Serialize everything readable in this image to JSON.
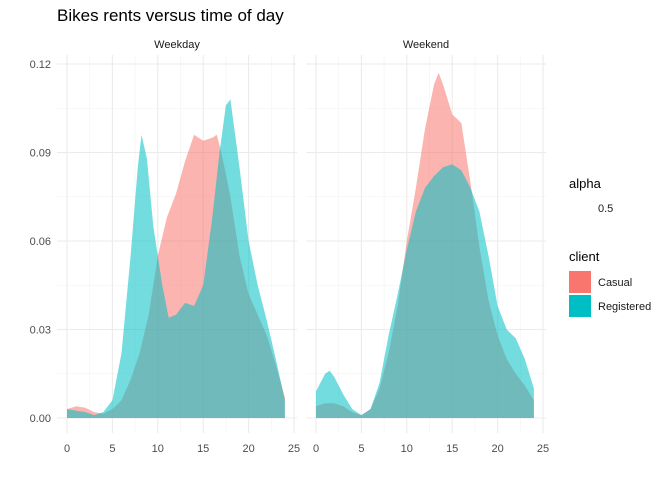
{
  "chart_data": {
    "type": "area",
    "title": "Bikes rents versus time of day",
    "xlabel": "",
    "ylabel": "",
    "xlim": [
      0,
      25
    ],
    "ylim": [
      0,
      0.12
    ],
    "x_ticks": [
      "0",
      "5",
      "10",
      "15",
      "20",
      "25"
    ],
    "y_ticks": [
      "0.00",
      "0.03",
      "0.06",
      "0.09",
      "0.12"
    ],
    "grid": true,
    "legend_position": "right",
    "facets": [
      {
        "label": "Weekday",
        "series": [
          {
            "name": "Casual",
            "color": "#F8766D",
            "points": [
              [
                0,
                0.003
              ],
              [
                1,
                0.004
              ],
              [
                2,
                0.0035
              ],
              [
                3,
                0.002
              ],
              [
                4,
                0.0015
              ],
              [
                5,
                0.003
              ],
              [
                6,
                0.006
              ],
              [
                7,
                0.013
              ],
              [
                8,
                0.022
              ],
              [
                9,
                0.035
              ],
              [
                10,
                0.055
              ],
              [
                11,
                0.068
              ],
              [
                12,
                0.076
              ],
              [
                13,
                0.087
              ],
              [
                14,
                0.096
              ],
              [
                15,
                0.094
              ],
              [
                16,
                0.095
              ],
              [
                16.5,
                0.096
              ],
              [
                17,
                0.09
              ],
              [
                18,
                0.075
              ],
              [
                19,
                0.055
              ],
              [
                20,
                0.042
              ],
              [
                21,
                0.035
              ],
              [
                22,
                0.028
              ],
              [
                23,
                0.018
              ],
              [
                24,
                0.007
              ]
            ]
          },
          {
            "name": "Registered",
            "color": "#00BFC4",
            "points": [
              [
                0,
                0.003
              ],
              [
                1,
                0.0025
              ],
              [
                2,
                0.002
              ],
              [
                3,
                0.001
              ],
              [
                4,
                0.002
              ],
              [
                5,
                0.006
              ],
              [
                6,
                0.022
              ],
              [
                7,
                0.055
              ],
              [
                7.8,
                0.085
              ],
              [
                8.2,
                0.096
              ],
              [
                8.8,
                0.088
              ],
              [
                9.5,
                0.065
              ],
              [
                10.5,
                0.045
              ],
              [
                11.2,
                0.034
              ],
              [
                12,
                0.035
              ],
              [
                13,
                0.039
              ],
              [
                14,
                0.038
              ],
              [
                15,
                0.045
              ],
              [
                16,
                0.068
              ],
              [
                16.8,
                0.09
              ],
              [
                17.5,
                0.106
              ],
              [
                18,
                0.108
              ],
              [
                19,
                0.085
              ],
              [
                20,
                0.06
              ],
              [
                21,
                0.045
              ],
              [
                22,
                0.033
              ],
              [
                23,
                0.02
              ],
              [
                24,
                0.006
              ]
            ]
          }
        ]
      },
      {
        "label": "Weekend",
        "series": [
          {
            "name": "Casual",
            "color": "#F8766D",
            "points": [
              [
                0,
                0.004
              ],
              [
                1,
                0.005
              ],
              [
                2,
                0.005
              ],
              [
                3,
                0.004
              ],
              [
                4,
                0.002
              ],
              [
                5,
                0.001
              ],
              [
                6,
                0.003
              ],
              [
                7,
                0.01
              ],
              [
                8,
                0.022
              ],
              [
                9,
                0.038
              ],
              [
                10,
                0.06
              ],
              [
                11,
                0.078
              ],
              [
                12,
                0.098
              ],
              [
                13,
                0.113
              ],
              [
                13.5,
                0.117
              ],
              [
                14,
                0.113
              ],
              [
                15,
                0.103
              ],
              [
                16,
                0.1
              ],
              [
                17,
                0.08
              ],
              [
                18,
                0.058
              ],
              [
                19,
                0.04
              ],
              [
                20,
                0.028
              ],
              [
                21,
                0.02
              ],
              [
                22,
                0.015
              ],
              [
                23,
                0.011
              ],
              [
                24,
                0.006
              ]
            ]
          },
          {
            "name": "Registered",
            "color": "#00BFC4",
            "points": [
              [
                0,
                0.009
              ],
              [
                0.5,
                0.012
              ],
              [
                1,
                0.015
              ],
              [
                1.5,
                0.016
              ],
              [
                2,
                0.014
              ],
              [
                3,
                0.008
              ],
              [
                4,
                0.003
              ],
              [
                5,
                0.001
              ],
              [
                6,
                0.003
              ],
              [
                7,
                0.012
              ],
              [
                8,
                0.028
              ],
              [
                9,
                0.042
              ],
              [
                10,
                0.057
              ],
              [
                11,
                0.07
              ],
              [
                12,
                0.078
              ],
              [
                13,
                0.082
              ],
              [
                14,
                0.085
              ],
              [
                15,
                0.086
              ],
              [
                16,
                0.084
              ],
              [
                17,
                0.078
              ],
              [
                18,
                0.07
              ],
              [
                19,
                0.055
              ],
              [
                20,
                0.038
              ],
              [
                21,
                0.03
              ],
              [
                22,
                0.027
              ],
              [
                23,
                0.02
              ],
              [
                24,
                0.01
              ]
            ]
          }
        ]
      }
    ],
    "legends": [
      {
        "title": "alpha",
        "entries": [
          {
            "label": "0.5"
          }
        ]
      },
      {
        "title": "client",
        "entries": [
          {
            "label": "Casual",
            "color": "#F8766D"
          },
          {
            "label": "Registered",
            "color": "#00BFC4"
          }
        ]
      }
    ]
  }
}
